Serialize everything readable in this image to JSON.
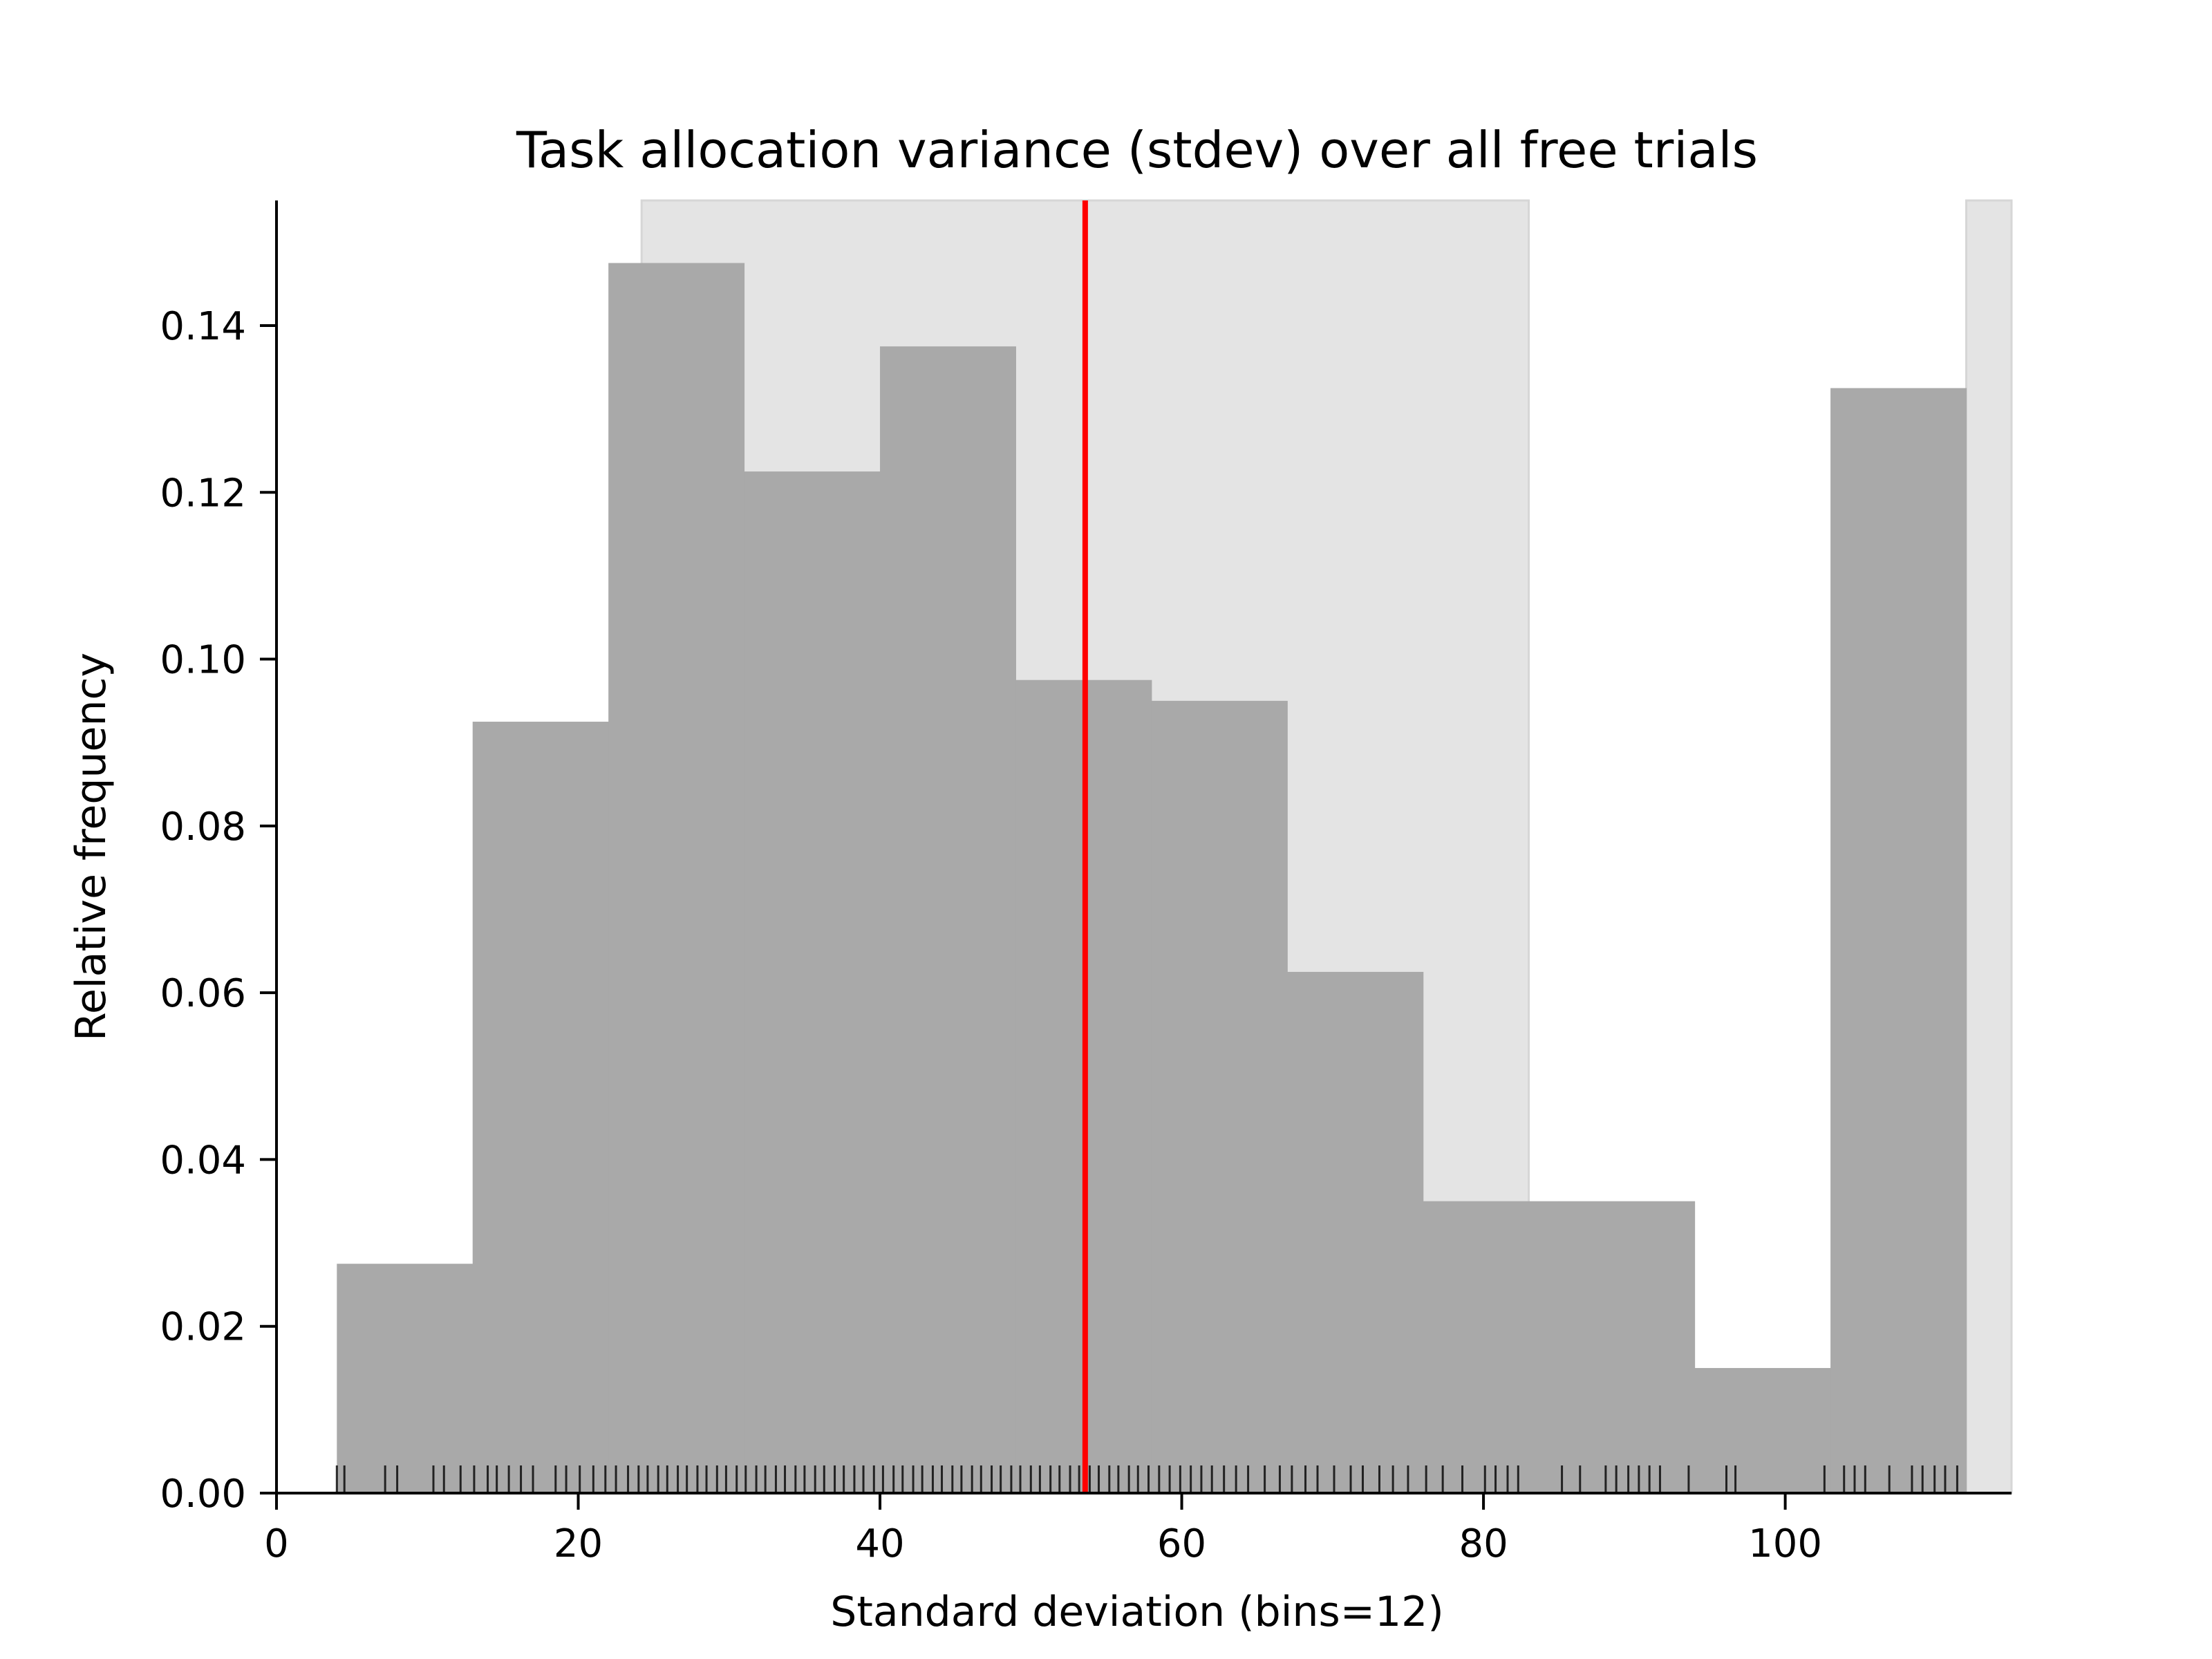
{
  "chart_data": {
    "type": "bar",
    "title": "Task allocation variance (stdev) over all free trials",
    "xlabel": "Standard deviation (bins=12)",
    "ylabel": "Relative frequency",
    "xlim": [
      0,
      115
    ],
    "ylim": [
      0,
      0.155
    ],
    "xticks": [
      0,
      20,
      40,
      60,
      80,
      100
    ],
    "yticks": [
      0.0,
      0.02,
      0.04,
      0.06,
      0.08,
      0.1,
      0.12,
      0.14
    ],
    "bin_edges": [
      4,
      13,
      22,
      31,
      40,
      49,
      58,
      67,
      76,
      85,
      94,
      103,
      112
    ],
    "values": [
      0.0275,
      0.0925,
      0.1475,
      0.1225,
      0.1375,
      0.0975,
      0.095,
      0.0625,
      0.035,
      0.035,
      0.015,
      0.1325
    ],
    "mean_line": {
      "x": 53.6,
      "color": "#ff0000"
    },
    "shaded_ranges": [
      [
        24.2,
        83.0
      ],
      [
        112.0,
        115.0
      ]
    ],
    "rug": [
      4,
      4.5,
      7.2,
      8,
      10.4,
      11.1,
      12.2,
      13.1,
      14.0,
      14.6,
      15.4,
      16.2,
      17.0,
      18.5,
      19.2,
      20.1,
      21.0,
      21.8,
      22.5,
      23.3,
      24.0,
      24.6,
      25.3,
      25.9,
      26.6,
      27.2,
      27.9,
      28.5,
      29.2,
      29.8,
      30.5,
      31.1,
      31.8,
      32.4,
      33.1,
      33.7,
      34.4,
      35.0,
      35.7,
      36.3,
      37.0,
      37.6,
      38.3,
      38.9,
      39.6,
      40.2,
      40.9,
      41.5,
      42.2,
      42.8,
      43.5,
      44.1,
      44.8,
      45.4,
      46.1,
      46.7,
      47.4,
      48.0,
      48.7,
      49.3,
      50.0,
      50.6,
      51.3,
      51.9,
      52.6,
      53.2,
      53.9,
      54.5,
      55.2,
      55.8,
      56.5,
      57.1,
      57.8,
      58.5,
      59.2,
      59.9,
      60.6,
      61.3,
      62.0,
      62.8,
      63.6,
      64.4,
      65.5,
      66.5,
      67.3,
      68.2,
      69.0,
      70.1,
      71.2,
      72.0,
      73.1,
      74.0,
      75.0,
      76.2,
      77.3,
      78.6,
      80.1,
      80.8,
      81.6,
      82.3,
      85.2,
      86.4,
      88.1,
      88.8,
      89.6,
      90.3,
      91.0,
      91.7,
      93.6,
      96.1,
      96.7,
      102.6,
      103.9,
      104.6,
      105.3,
      106.9,
      108.4,
      109.1,
      109.9,
      110.6,
      111.4
    ],
    "colors": {
      "bars": "#a9a9a9",
      "shade": "#e4e4e4",
      "rug": "#000000",
      "axis": "#000000"
    },
    "grid": false,
    "legend": "none"
  }
}
